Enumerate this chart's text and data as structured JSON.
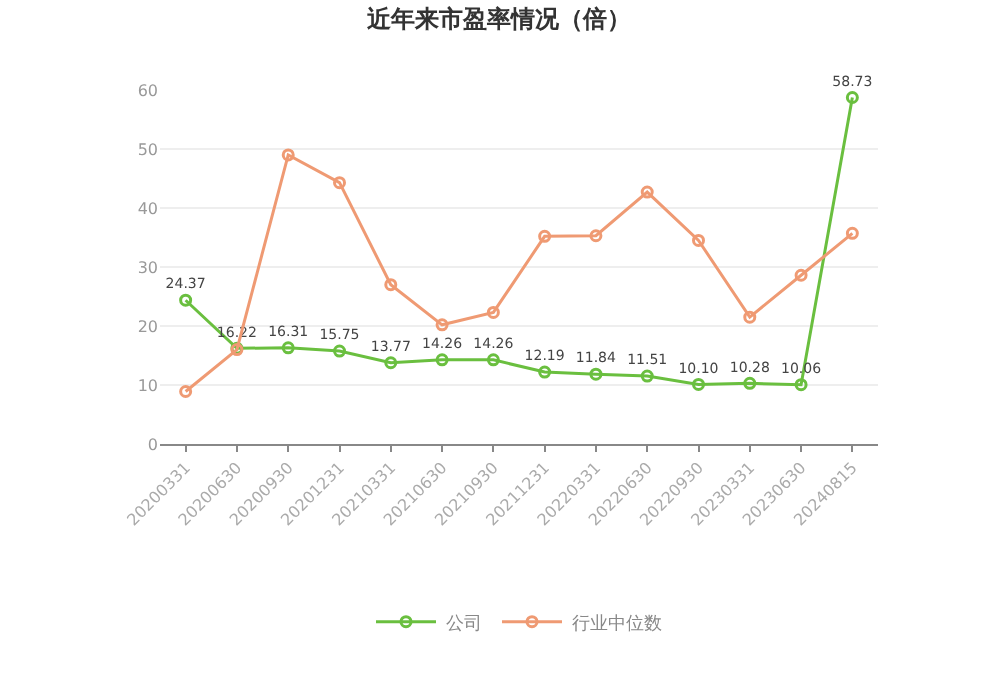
{
  "chart_data": {
    "type": "line",
    "title": "近年来市盈率情况（倍）",
    "categories": [
      "20200331",
      "20200630",
      "20200930",
      "20201231",
      "20210331",
      "20210630",
      "20210930",
      "20211231",
      "20220331",
      "20220630",
      "20220930",
      "20230331",
      "20230630",
      "20240815"
    ],
    "series": [
      {
        "name": "公司",
        "color": "#6abf3f",
        "values": [
          24.37,
          16.22,
          16.31,
          15.75,
          13.77,
          14.26,
          14.26,
          12.19,
          11.84,
          11.51,
          10.1,
          10.28,
          10.06,
          58.73
        ],
        "value_labels": [
          "24.37",
          "16.22",
          "16.31",
          "15.75",
          "13.77",
          "14.26",
          "14.26",
          "12.19",
          "11.84",
          "11.51",
          "10.10",
          "10.28",
          "10.06",
          "58.73"
        ]
      },
      {
        "name": "行业中位数",
        "color": "#ef9a73",
        "values": [
          8.9,
          16.0,
          49.0,
          44.3,
          27.0,
          20.2,
          22.3,
          35.2,
          35.3,
          42.7,
          34.5,
          21.5,
          28.6,
          35.7
        ]
      }
    ],
    "ylim": [
      0,
      60
    ],
    "yticks": [
      0,
      10,
      20,
      30,
      40,
      50,
      60
    ],
    "grid": "y",
    "legend": "bottom",
    "marker": "circle",
    "line_style": "solid"
  }
}
